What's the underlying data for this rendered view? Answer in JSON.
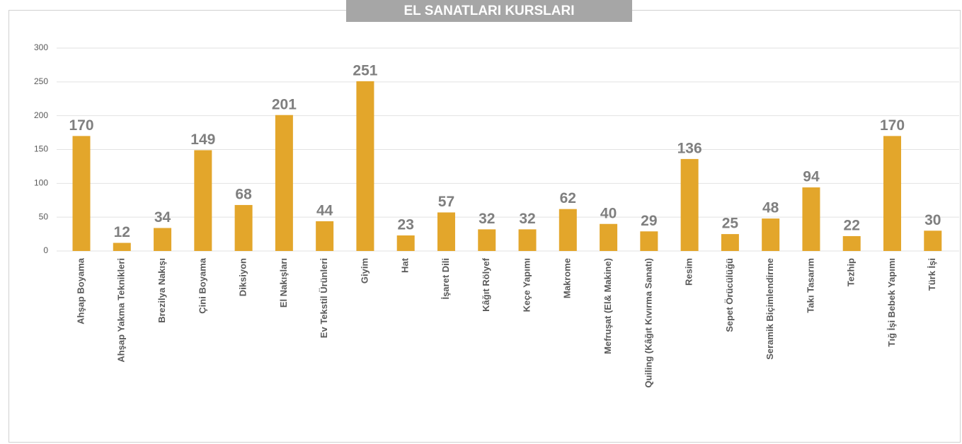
{
  "chart_data": {
    "type": "bar",
    "title": "EL SANATLARI KURSLARI",
    "categories": [
      "Ahşap Boyama",
      "Ahşap Yakma Teknikleri",
      "Brezilya Nakışı",
      "Çini Boyama",
      "Diksiyon",
      "El Nakışları",
      "Ev Tekstil Ürünleri",
      "Giyim",
      "Hat",
      "İşaret Dili",
      "Kâğıt Rölyef",
      "Keçe Yapımı",
      "Makrome",
      "Mefruşat (El& Makine)",
      "Quiling (Kâğıt Kıvırma Sanatı)",
      "Resim",
      "Sepet Örücülüğü",
      "Seramik Biçimlendirme",
      "Takı Tasarım",
      "Tezhip",
      "Tığ İşi Bebek Yapımı",
      "Türk İşi"
    ],
    "values": [
      170,
      12,
      34,
      149,
      68,
      201,
      44,
      251,
      23,
      57,
      32,
      32,
      62,
      40,
      29,
      136,
      25,
      48,
      94,
      22,
      170,
      30
    ],
    "color": "#e3a62b",
    "ylim": [
      0,
      300
    ],
    "yticks": [
      0,
      50,
      100,
      150,
      200,
      250,
      300
    ],
    "grid": true
  }
}
